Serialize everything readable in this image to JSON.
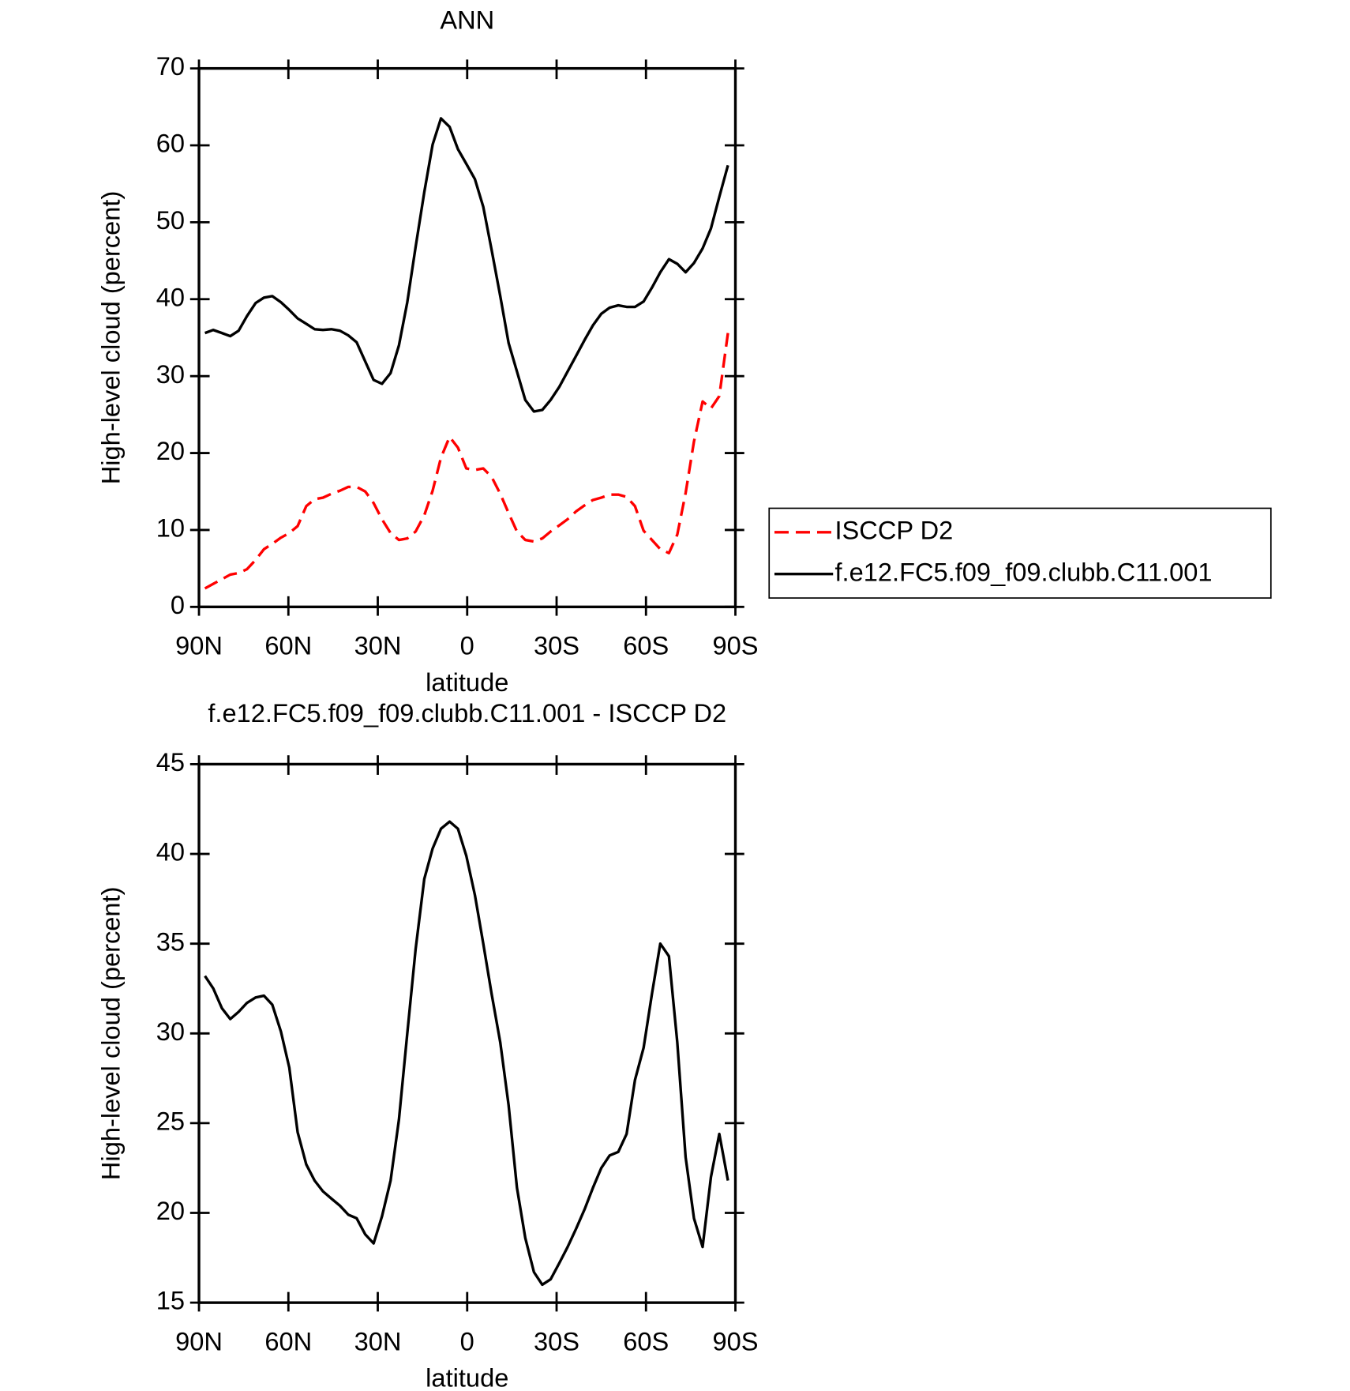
{
  "chart_data": [
    {
      "type": "line",
      "title": "ANN",
      "x_label": "latitude",
      "y_label": "High-level cloud (percent)",
      "x": [
        88.0,
        85.2,
        82.3,
        79.5,
        76.7,
        73.9,
        71.0,
        68.2,
        65.4,
        62.5,
        59.7,
        56.9,
        54.0,
        51.2,
        48.4,
        45.6,
        42.7,
        39.9,
        37.1,
        34.2,
        31.4,
        28.6,
        25.7,
        22.9,
        20.1,
        17.3,
        14.4,
        11.6,
        8.8,
        5.9,
        3.1,
        0.3,
        -2.6,
        -5.4,
        -8.2,
        -11.1,
        -13.9,
        -16.7,
        -19.5,
        -22.4,
        -25.2,
        -28.0,
        -30.9,
        -33.7,
        -36.5,
        -39.4,
        -42.2,
        -45.0,
        -47.8,
        -50.7,
        -53.5,
        -56.3,
        -59.2,
        -62.0,
        -64.8,
        -67.7,
        -70.5,
        -73.3,
        -76.1,
        -79.0,
        -81.8,
        -84.6,
        -87.5
      ],
      "xlim": [
        90,
        -90
      ],
      "xticks": [
        {
          "value": 90,
          "label": "90N"
        },
        {
          "value": 60,
          "label": "60N"
        },
        {
          "value": 30,
          "label": "30N"
        },
        0,
        {
          "value": -30,
          "label": "30S"
        },
        {
          "value": -60,
          "label": "60S"
        },
        {
          "value": -90,
          "label": "90S"
        }
      ],
      "ylim": [
        0,
        70
      ],
      "yticks": [
        0,
        10,
        20,
        30,
        40,
        50,
        60,
        70
      ],
      "legend": "right",
      "series": [
        {
          "name": "ISCCP D2",
          "color": "#ff0000",
          "dash": "dashed",
          "values": [
            2.4,
            3.0,
            3.6,
            4.2,
            4.4,
            4.9,
            6.1,
            7.5,
            8.2,
            9.0,
            9.6,
            10.5,
            13.1,
            14.0,
            14.2,
            14.7,
            15.1,
            15.6,
            15.6,
            15.0,
            13.5,
            11.4,
            9.6,
            8.7,
            8.9,
            9.8,
            11.9,
            15.1,
            19.4,
            22.1,
            20.7,
            18.0,
            17.8,
            18.0,
            16.9,
            14.7,
            12.2,
            9.8,
            8.7,
            8.5,
            8.9,
            9.8,
            10.6,
            11.4,
            12.4,
            13.2,
            13.9,
            14.2,
            14.6,
            14.6,
            14.3,
            13.1,
            9.9,
            8.7,
            7.5,
            7.0,
            9.4,
            14.8,
            21.5,
            26.7,
            25.8,
            27.4,
            35.6
          ]
        },
        {
          "name": "f.e12.FC5.f09_f09.clubb.C11.001",
          "color": "#000000",
          "dash": "solid",
          "values": [
            35.6,
            36.0,
            35.6,
            35.2,
            35.9,
            37.8,
            39.5,
            40.2,
            40.4,
            39.6,
            38.6,
            37.5,
            36.8,
            36.1,
            36.0,
            36.1,
            35.9,
            35.3,
            34.4,
            31.9,
            29.5,
            29.0,
            30.4,
            34.0,
            39.6,
            46.8,
            53.9,
            60.1,
            63.5,
            62.4,
            59.5,
            57.6,
            55.6,
            52.0,
            46.4,
            40.4,
            34.3,
            30.6,
            26.9,
            25.4,
            25.6,
            26.9,
            28.6,
            30.6,
            32.6,
            34.7,
            36.6,
            38.1,
            38.9,
            39.2,
            39.0,
            39.0,
            39.7,
            41.5,
            43.5,
            45.2,
            44.6,
            43.5,
            44.7,
            46.6,
            49.2,
            53.3,
            57.4
          ]
        }
      ]
    },
    {
      "type": "line",
      "title": "f.e12.FC5.f09_f09.clubb.C11.001 - ISCCP D2",
      "x_label": "latitude",
      "y_label": "High-level cloud (percent)",
      "x": [
        88.0,
        85.2,
        82.3,
        79.5,
        76.7,
        73.9,
        71.0,
        68.2,
        65.4,
        62.5,
        59.7,
        56.9,
        54.0,
        51.2,
        48.4,
        45.6,
        42.7,
        39.9,
        37.1,
        34.2,
        31.4,
        28.6,
        25.7,
        22.9,
        20.1,
        17.3,
        14.4,
        11.6,
        8.8,
        5.9,
        3.1,
        0.3,
        -2.6,
        -5.4,
        -8.2,
        -11.1,
        -13.9,
        -16.7,
        -19.5,
        -22.4,
        -25.2,
        -28.0,
        -30.9,
        -33.7,
        -36.5,
        -39.4,
        -42.2,
        -45.0,
        -47.8,
        -50.7,
        -53.5,
        -56.3,
        -59.2,
        -62.0,
        -64.8,
        -67.7,
        -70.5,
        -73.3,
        -76.1,
        -79.0,
        -81.8,
        -84.6,
        -87.5
      ],
      "xlim": [
        90,
        -90
      ],
      "xticks": [
        {
          "value": 90,
          "label": "90N"
        },
        {
          "value": 60,
          "label": "60N"
        },
        {
          "value": 30,
          "label": "30N"
        },
        0,
        {
          "value": -30,
          "label": "30S"
        },
        {
          "value": -60,
          "label": "60S"
        },
        {
          "value": -90,
          "label": "90S"
        }
      ],
      "ylim": [
        15,
        45
      ],
      "yticks": [
        15,
        20,
        25,
        30,
        35,
        40,
        45
      ],
      "series": [
        {
          "color": "#000000",
          "dash": "solid",
          "values": [
            33.2,
            32.5,
            31.4,
            30.8,
            31.2,
            31.7,
            32.0,
            32.1,
            31.6,
            30.1,
            28.1,
            24.5,
            22.7,
            21.8,
            21.2,
            20.8,
            20.4,
            19.9,
            19.7,
            18.8,
            18.3,
            19.8,
            21.8,
            25.2,
            30.0,
            34.7,
            38.6,
            40.3,
            41.4,
            41.8,
            41.4,
            39.9,
            37.7,
            35.0,
            32.2,
            29.5,
            26.0,
            21.4,
            18.6,
            16.7,
            16.0,
            16.3,
            17.2,
            18.1,
            19.1,
            20.2,
            21.4,
            22.5,
            23.2,
            23.4,
            24.4,
            27.4,
            29.2,
            32.2,
            35.0,
            34.3,
            29.5,
            23.1,
            19.7,
            18.1,
            22.0,
            24.4,
            21.8
          ]
        }
      ]
    }
  ]
}
